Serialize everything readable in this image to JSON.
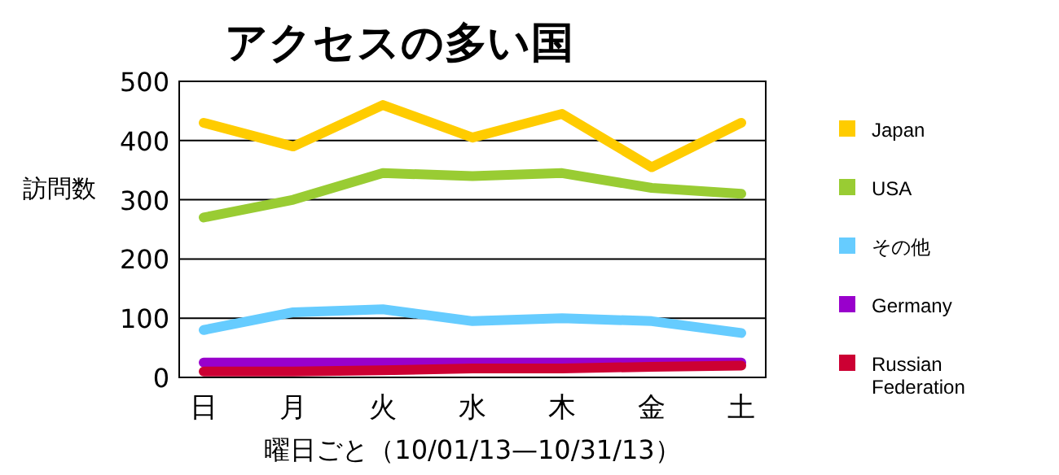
{
  "chart_data": {
    "type": "line",
    "title": "アクセスの多い国",
    "xlabel": "曜日ごと（10/01/13—10/31/13）",
    "ylabel": "訪問数",
    "categories": [
      "日",
      "月",
      "火",
      "水",
      "木",
      "金",
      "土"
    ],
    "series": [
      {
        "name": "Japan",
        "color": "#ffcc00",
        "values": [
          430,
          390,
          460,
          405,
          445,
          355,
          430
        ]
      },
      {
        "name": "USA",
        "color": "#99cc33",
        "values": [
          270,
          300,
          345,
          340,
          345,
          320,
          310
        ]
      },
      {
        "name": "その他",
        "color": "#66ccff",
        "values": [
          80,
          110,
          115,
          95,
          100,
          95,
          75
        ]
      },
      {
        "name": "Germany",
        "color": "#9900cc",
        "values": [
          25,
          25,
          25,
          25,
          25,
          25,
          25
        ]
      },
      {
        "name": "Russian Federation",
        "color": "#cc0033",
        "values": [
          10,
          10,
          12,
          15,
          15,
          18,
          20
        ]
      }
    ],
    "ylim": [
      0,
      500
    ],
    "yticks": [
      0,
      100,
      200,
      300,
      400,
      500
    ],
    "grid": "y",
    "legend": "right",
    "marker": "none",
    "line_style": "solid"
  }
}
